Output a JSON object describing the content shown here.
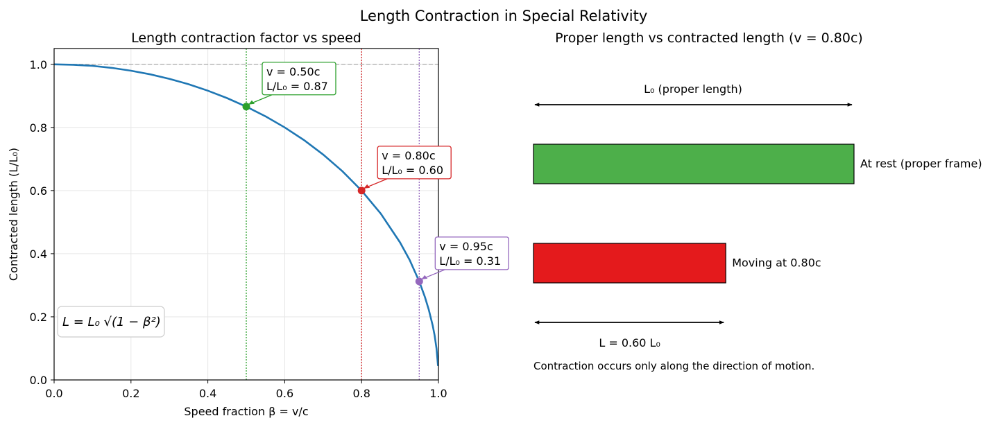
{
  "figure": {
    "suptitle": "Length Contraction in Special Relativity"
  },
  "left_panel": {
    "formula": "L = L₀ √(1 − β²)"
  },
  "right_panel": {
    "title": "Proper length vs contracted length (v = 0.80c)",
    "top_arrow_label": "L₀ (proper length)",
    "bottom_arrow_label": "L = 0.60 L₀",
    "rest_bar_label": "At rest (proper frame)",
    "moving_bar_label": "Moving at 0.80c",
    "footnote": "Contraction occurs only along the direction of motion.",
    "rest_fraction": 1.0,
    "moving_fraction": 0.6,
    "colors": {
      "rest": "#4daf4a",
      "moving": "#e41a1c"
    }
  },
  "chart_data": [
    {
      "type": "line",
      "title": "Length contraction factor vs speed",
      "xlabel": "Speed fraction β = v/c",
      "ylabel": "Contracted length (L/L₀)",
      "xlim": [
        0,
        1
      ],
      "ylim": [
        0,
        1.05
      ],
      "xticks": [
        "0.0",
        "0.2",
        "0.4",
        "0.6",
        "0.8",
        "1.0"
      ],
      "yticks": [
        "0.0",
        "0.2",
        "0.4",
        "0.6",
        "0.8",
        "1.0"
      ],
      "grid": true,
      "reference_line_y": 1.0,
      "curve": {
        "x": [
          0,
          0.05,
          0.1,
          0.15,
          0.2,
          0.25,
          0.3,
          0.35,
          0.4,
          0.45,
          0.5,
          0.55,
          0.6,
          0.65,
          0.7,
          0.75,
          0.8,
          0.85,
          0.9,
          0.925,
          0.95,
          0.965,
          0.975,
          0.985,
          0.99,
          0.995,
          0.999
        ],
        "y": [
          1.0,
          0.9987,
          0.995,
          0.9887,
          0.9798,
          0.9682,
          0.9539,
          0.9368,
          0.9165,
          0.893,
          0.866,
          0.8352,
          0.8,
          0.76,
          0.7141,
          0.6614,
          0.6,
          0.5268,
          0.4359,
          0.38,
          0.3122,
          0.2621,
          0.2222,
          0.1726,
          0.1411,
          0.0999,
          0.0447
        ],
        "color": "#1f77b4"
      },
      "markers": [
        {
          "x": 0.5,
          "y": 0.866,
          "line1": "v = 0.50c",
          "line2": "L/L₀ = 0.87",
          "color": "#2ca02c"
        },
        {
          "x": 0.8,
          "y": 0.6,
          "line1": "v = 0.80c",
          "line2": "L/L₀ = 0.60",
          "color": "#d62728"
        },
        {
          "x": 0.95,
          "y": 0.3122,
          "line1": "v = 0.95c",
          "line2": "L/L₀ = 0.31",
          "color": "#9467bd"
        }
      ]
    },
    {
      "type": "bar",
      "orientation": "horizontal",
      "title": "Proper length vs contracted length (v = 0.80c)",
      "categories": [
        "At rest (proper frame)",
        "Moving at 0.80c"
      ],
      "values": [
        1.0,
        0.6
      ]
    }
  ]
}
